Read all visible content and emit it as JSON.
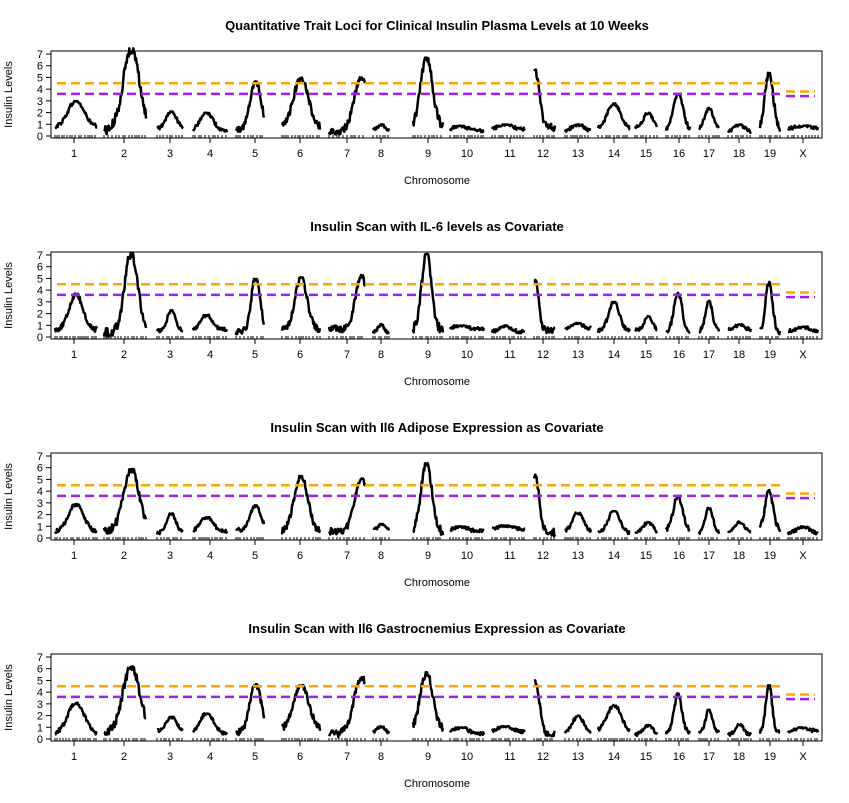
{
  "colors": {
    "upper_threshold": "#FFA500",
    "lower_threshold": "#A020F0",
    "lod_curve": "#000000"
  },
  "chart_data": [
    {
      "type": "line",
      "title": "Quantitative Trait Loci for Clinical Insulin Plasma Levels at 10 Weeks",
      "xlabel": "Chromosome",
      "ylabel": "Insulin Levels",
      "ylim": [
        0,
        7
      ],
      "yticks": [
        "0",
        "1",
        "2",
        "3",
        "4",
        "5",
        "6",
        "7"
      ],
      "categories": [
        "1",
        "2",
        "3",
        "4",
        "5",
        "6",
        "7",
        "8",
        "9",
        "10",
        "11",
        "12",
        "13",
        "14",
        "15",
        "16",
        "17",
        "18",
        "19",
        "X"
      ],
      "peak_lod": [
        3.0,
        7.5,
        2.1,
        2.0,
        4.7,
        5.0,
        5.1,
        1.0,
        6.7,
        0.9,
        1.0,
        5.7,
        1.0,
        2.8,
        2.0,
        3.6,
        2.4,
        1.0,
        5.4,
        0.9
      ],
      "thresholds": {
        "autosomes": [
          4.5,
          3.6
        ],
        "X": [
          3.8,
          3.4
        ]
      },
      "grid": false
    },
    {
      "type": "line",
      "title": "Insulin Scan with IL-6 levels as Covariate",
      "xlabel": "Chromosome",
      "ylabel": "Insulin Levels",
      "ylim": [
        0,
        7
      ],
      "yticks": [
        "0",
        "1",
        "2",
        "3",
        "4",
        "5",
        "6",
        "7"
      ],
      "categories": [
        "1",
        "2",
        "3",
        "4",
        "5",
        "6",
        "7",
        "8",
        "9",
        "10",
        "11",
        "12",
        "13",
        "14",
        "15",
        "16",
        "17",
        "18",
        "19",
        "X"
      ],
      "peak_lod": [
        3.7,
        7.2,
        2.3,
        1.9,
        5.0,
        5.1,
        5.3,
        1.1,
        7.1,
        1.0,
        1.0,
        4.9,
        1.2,
        3.0,
        1.8,
        3.8,
        3.1,
        1.1,
        4.7,
        0.9
      ],
      "thresholds": {
        "autosomes": [
          4.5,
          3.6
        ],
        "X": [
          3.8,
          3.4
        ]
      },
      "grid": false
    },
    {
      "type": "line",
      "title": "Insulin Scan with Il6 Adipose Expression as Covariate",
      "xlabel": "Chromosome",
      "ylabel": "Insulin Levels",
      "ylim": [
        0,
        7
      ],
      "yticks": [
        "0",
        "1",
        "2",
        "3",
        "4",
        "5",
        "6",
        "7"
      ],
      "categories": [
        "1",
        "2",
        "3",
        "4",
        "5",
        "6",
        "7",
        "8",
        "9",
        "10",
        "11",
        "12",
        "13",
        "14",
        "15",
        "16",
        "17",
        "18",
        "19",
        "X"
      ],
      "peak_lod": [
        2.9,
        5.9,
        2.1,
        1.8,
        2.8,
        5.3,
        5.1,
        1.2,
        6.4,
        1.0,
        1.1,
        5.5,
        2.2,
        2.3,
        1.4,
        3.6,
        2.6,
        1.4,
        4.1,
        1.0
      ],
      "thresholds": {
        "autosomes": [
          4.5,
          3.6
        ],
        "X": [
          3.8,
          3.4
        ]
      },
      "grid": false
    },
    {
      "type": "line",
      "title": "Insulin Scan with Il6 Gastrocnemius Expression as Covariate",
      "xlabel": "Chromosome",
      "ylabel": "Insulin Levels",
      "ylim": [
        0,
        7
      ],
      "yticks": [
        "0",
        "1",
        "2",
        "3",
        "4",
        "5",
        "6",
        "7"
      ],
      "categories": [
        "1",
        "2",
        "3",
        "4",
        "5",
        "6",
        "7",
        "8",
        "9",
        "10",
        "11",
        "12",
        "13",
        "14",
        "15",
        "16",
        "17",
        "18",
        "19",
        "X"
      ],
      "peak_lod": [
        3.1,
        6.2,
        1.9,
        2.2,
        4.7,
        4.6,
        5.3,
        1.1,
        5.7,
        1.0,
        1.1,
        5.0,
        2.0,
        2.9,
        1.2,
        3.9,
        2.5,
        1.3,
        4.6,
        1.0
      ],
      "thresholds": {
        "autosomes": [
          4.5,
          3.6
        ],
        "X": [
          3.8,
          3.4
        ]
      },
      "grid": false
    }
  ]
}
